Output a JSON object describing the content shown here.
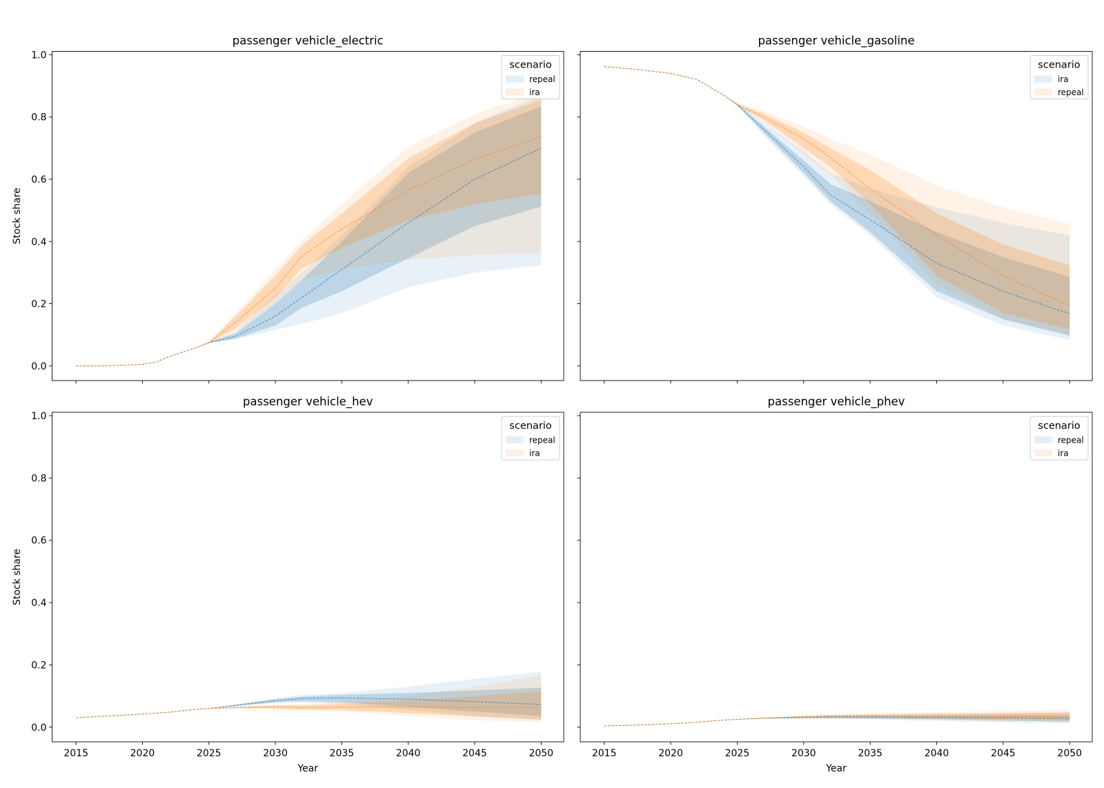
{
  "chart_data": [
    {
      "type": "area",
      "title": "passenger vehicle_electric",
      "xlabel": "",
      "ylabel": "Stock share",
      "xlim": [
        2013.2,
        2051.7
      ],
      "ylim": [
        -0.047,
        1.011
      ],
      "xticks": [
        2015,
        2020,
        2025,
        2030,
        2035,
        2040,
        2045,
        2050
      ],
      "yticks": [
        "0.0",
        "0.2",
        "0.4",
        "0.6",
        "0.8",
        "1.0"
      ],
      "show_xticklabels": false,
      "show_yticklabels": true,
      "legend": {
        "title": "scenario",
        "placement": "top-right"
      },
      "x": [
        2015,
        2017,
        2020,
        2021,
        2022,
        2024,
        2025,
        2027,
        2030,
        2032,
        2035,
        2040,
        2045,
        2050
      ],
      "series": [
        {
          "name": "repeal",
          "color": "#1f77b4",
          "mean": [
            0,
            0,
            0.005,
            0.012,
            0.03,
            0.058,
            0.075,
            0.095,
            0.16,
            0.22,
            0.31,
            0.46,
            0.6,
            0.7
          ],
          "inner_lo": [
            0,
            0,
            0.005,
            0.012,
            0.03,
            0.058,
            0.074,
            0.088,
            0.13,
            0.187,
            0.24,
            0.346,
            0.45,
            0.512
          ],
          "inner_hi": [
            0,
            0,
            0.005,
            0.012,
            0.03,
            0.058,
            0.076,
            0.105,
            0.2,
            0.276,
            0.4,
            0.62,
            0.75,
            0.834
          ],
          "outer_lo": [
            0,
            0,
            0.005,
            0.012,
            0.03,
            0.058,
            0.073,
            0.085,
            0.115,
            0.135,
            0.17,
            0.253,
            0.3,
            0.324
          ],
          "outer_hi": [
            0,
            0,
            0.005,
            0.012,
            0.03,
            0.058,
            0.077,
            0.11,
            0.23,
            0.3,
            0.42,
            0.64,
            0.78,
            0.87
          ]
        },
        {
          "name": "ira",
          "color": "#ff7f0e",
          "mean": [
            0,
            0,
            0.005,
            0.012,
            0.03,
            0.058,
            0.075,
            0.14,
            0.25,
            0.353,
            0.44,
            0.564,
            0.665,
            0.738
          ],
          "inner_lo": [
            0,
            0,
            0.005,
            0.012,
            0.03,
            0.058,
            0.073,
            0.12,
            0.22,
            0.313,
            0.38,
            0.468,
            0.52,
            0.553
          ],
          "inner_hi": [
            0,
            0,
            0.005,
            0.012,
            0.03,
            0.058,
            0.077,
            0.16,
            0.29,
            0.387,
            0.49,
            0.667,
            0.78,
            0.856
          ],
          "outer_lo": [
            0,
            0,
            0.005,
            0.012,
            0.03,
            0.058,
            0.072,
            0.11,
            0.2,
            0.276,
            0.31,
            0.342,
            0.356,
            0.364
          ],
          "outer_hi": [
            0,
            0,
            0.005,
            0.012,
            0.03,
            0.058,
            0.078,
            0.17,
            0.31,
            0.405,
            0.52,
            0.705,
            0.81,
            0.88
          ]
        }
      ]
    },
    {
      "type": "area",
      "title": "passenger vehicle_gasoline",
      "xlabel": "",
      "ylabel": "",
      "xlim": [
        2013.2,
        2051.7
      ],
      "ylim": [
        -0.047,
        1.011
      ],
      "xticks": [
        2015,
        2020,
        2025,
        2030,
        2035,
        2040,
        2045,
        2050
      ],
      "yticks": [
        "0.0",
        "0.2",
        "0.4",
        "0.6",
        "0.8",
        "1.0"
      ],
      "show_xticklabels": false,
      "show_yticklabels": false,
      "legend": {
        "title": "scenario",
        "placement": "top-right"
      },
      "x": [
        2015,
        2017,
        2020,
        2021,
        2022,
        2024,
        2025,
        2027,
        2030,
        2032,
        2035,
        2040,
        2045,
        2050
      ],
      "series": [
        {
          "name": "ira",
          "color": "#1f77b4",
          "mean": [
            0.962,
            0.955,
            0.94,
            0.93,
            0.92,
            0.87,
            0.84,
            0.76,
            0.64,
            0.55,
            0.47,
            0.33,
            0.24,
            0.168
          ],
          "inner_lo": [
            0.962,
            0.955,
            0.94,
            0.93,
            0.92,
            0.87,
            0.838,
            0.75,
            0.62,
            0.53,
            0.43,
            0.24,
            0.15,
            0.097
          ],
          "inner_hi": [
            0.962,
            0.955,
            0.94,
            0.93,
            0.92,
            0.87,
            0.842,
            0.77,
            0.66,
            0.585,
            0.53,
            0.43,
            0.35,
            0.286
          ],
          "outer_lo": [
            0.962,
            0.955,
            0.94,
            0.93,
            0.92,
            0.87,
            0.836,
            0.74,
            0.61,
            0.52,
            0.42,
            0.22,
            0.13,
            0.083
          ],
          "outer_hi": [
            0.962,
            0.955,
            0.94,
            0.93,
            0.92,
            0.87,
            0.844,
            0.78,
            0.69,
            0.62,
            0.57,
            0.51,
            0.46,
            0.419
          ]
        },
        {
          "name": "repeal",
          "color": "#ff7f0e",
          "mean": [
            0.962,
            0.955,
            0.94,
            0.93,
            0.92,
            0.87,
            0.84,
            0.8,
            0.73,
            0.67,
            0.57,
            0.42,
            0.29,
            0.194
          ],
          "inner_lo": [
            0.962,
            0.955,
            0.94,
            0.93,
            0.92,
            0.87,
            0.838,
            0.79,
            0.7,
            0.64,
            0.52,
            0.29,
            0.17,
            0.117
          ],
          "inner_hi": [
            0.962,
            0.955,
            0.94,
            0.93,
            0.92,
            0.87,
            0.842,
            0.81,
            0.75,
            0.7,
            0.63,
            0.49,
            0.39,
            0.323
          ],
          "outer_lo": [
            0.962,
            0.955,
            0.94,
            0.93,
            0.92,
            0.87,
            0.836,
            0.78,
            0.68,
            0.615,
            0.49,
            0.26,
            0.15,
            0.1
          ],
          "outer_hi": [
            0.962,
            0.955,
            0.94,
            0.93,
            0.92,
            0.87,
            0.844,
            0.82,
            0.77,
            0.73,
            0.68,
            0.58,
            0.51,
            0.456
          ]
        }
      ]
    },
    {
      "type": "area",
      "title": "passenger vehicle_hev",
      "xlabel": "Year",
      "ylabel": "Stock share",
      "xlim": [
        2013.2,
        2051.7
      ],
      "ylim": [
        -0.047,
        1.011
      ],
      "xticks": [
        2015,
        2020,
        2025,
        2030,
        2035,
        2040,
        2045,
        2050
      ],
      "yticks": [
        "0.0",
        "0.2",
        "0.4",
        "0.6",
        "0.8",
        "1.0"
      ],
      "show_xticklabels": true,
      "show_yticklabels": true,
      "legend": {
        "title": "scenario",
        "placement": "top-right"
      },
      "x": [
        2015,
        2017,
        2020,
        2021,
        2022,
        2024,
        2025,
        2027,
        2030,
        2032,
        2035,
        2040,
        2045,
        2050
      ],
      "series": [
        {
          "name": "repeal",
          "color": "#1f77b4",
          "mean": [
            0.03,
            0.035,
            0.042,
            0.045,
            0.048,
            0.057,
            0.06,
            0.07,
            0.085,
            0.092,
            0.094,
            0.09,
            0.082,
            0.073
          ],
          "inner_lo": [
            0.03,
            0.035,
            0.042,
            0.045,
            0.048,
            0.057,
            0.06,
            0.068,
            0.08,
            0.083,
            0.08,
            0.065,
            0.05,
            0.035
          ],
          "inner_hi": [
            0.03,
            0.035,
            0.042,
            0.045,
            0.048,
            0.057,
            0.06,
            0.072,
            0.09,
            0.098,
            0.104,
            0.11,
            0.118,
            0.127
          ],
          "outer_lo": [
            0.03,
            0.035,
            0.042,
            0.045,
            0.048,
            0.057,
            0.06,
            0.067,
            0.078,
            0.08,
            0.075,
            0.055,
            0.035,
            0.022
          ],
          "outer_hi": [
            0.03,
            0.035,
            0.042,
            0.045,
            0.048,
            0.057,
            0.06,
            0.073,
            0.093,
            0.103,
            0.11,
            0.13,
            0.155,
            0.178
          ]
        },
        {
          "name": "ira",
          "color": "#ff7f0e",
          "mean": [
            0.03,
            0.035,
            0.042,
            0.045,
            0.048,
            0.057,
            0.06,
            0.063,
            0.065,
            0.063,
            0.065,
            0.065,
            0.064,
            0.064
          ],
          "inner_lo": [
            0.03,
            0.035,
            0.042,
            0.045,
            0.048,
            0.057,
            0.06,
            0.061,
            0.06,
            0.057,
            0.055,
            0.045,
            0.035,
            0.025
          ],
          "inner_hi": [
            0.03,
            0.035,
            0.042,
            0.045,
            0.048,
            0.057,
            0.06,
            0.065,
            0.07,
            0.07,
            0.075,
            0.085,
            0.1,
            0.116
          ],
          "outer_lo": [
            0.03,
            0.035,
            0.042,
            0.045,
            0.048,
            0.057,
            0.06,
            0.06,
            0.058,
            0.053,
            0.05,
            0.035,
            0.022,
            0.016
          ],
          "outer_hi": [
            0.03,
            0.035,
            0.042,
            0.045,
            0.048,
            0.057,
            0.06,
            0.066,
            0.072,
            0.075,
            0.082,
            0.1,
            0.13,
            0.167
          ]
        }
      ]
    },
    {
      "type": "area",
      "title": "passenger vehicle_phev",
      "xlabel": "Year",
      "ylabel": "",
      "xlim": [
        2013.2,
        2051.7
      ],
      "ylim": [
        -0.047,
        1.011
      ],
      "xticks": [
        2015,
        2020,
        2025,
        2030,
        2035,
        2040,
        2045,
        2050
      ],
      "yticks": [
        "0.0",
        "0.2",
        "0.4",
        "0.6",
        "0.8",
        "1.0"
      ],
      "show_xticklabels": true,
      "show_yticklabels": false,
      "legend": {
        "title": "scenario",
        "placement": "top-right"
      },
      "x": [
        2015,
        2017,
        2020,
        2021,
        2022,
        2024,
        2025,
        2027,
        2030,
        2032,
        2035,
        2040,
        2045,
        2050
      ],
      "series": [
        {
          "name": "repeal",
          "color": "#1f77b4",
          "mean": [
            0.004,
            0.006,
            0.011,
            0.013,
            0.016,
            0.023,
            0.025,
            0.029,
            0.031,
            0.032,
            0.032,
            0.031,
            0.03,
            0.028
          ],
          "inner_lo": [
            0.004,
            0.006,
            0.011,
            0.013,
            0.016,
            0.023,
            0.025,
            0.028,
            0.029,
            0.029,
            0.028,
            0.025,
            0.021,
            0.018
          ],
          "inner_hi": [
            0.004,
            0.006,
            0.011,
            0.013,
            0.016,
            0.023,
            0.025,
            0.03,
            0.033,
            0.035,
            0.036,
            0.037,
            0.039,
            0.04
          ],
          "outer_lo": [
            0.004,
            0.006,
            0.011,
            0.013,
            0.016,
            0.023,
            0.025,
            0.027,
            0.028,
            0.027,
            0.025,
            0.02,
            0.015,
            0.012
          ],
          "outer_hi": [
            0.004,
            0.006,
            0.011,
            0.013,
            0.016,
            0.023,
            0.025,
            0.031,
            0.034,
            0.037,
            0.039,
            0.042,
            0.045,
            0.048
          ]
        },
        {
          "name": "ira",
          "color": "#ff7f0e",
          "mean": [
            0.004,
            0.006,
            0.011,
            0.013,
            0.016,
            0.023,
            0.025,
            0.029,
            0.034,
            0.036,
            0.037,
            0.036,
            0.035,
            0.033
          ],
          "inner_lo": [
            0.004,
            0.006,
            0.011,
            0.013,
            0.016,
            0.023,
            0.025,
            0.028,
            0.032,
            0.033,
            0.032,
            0.029,
            0.026,
            0.023
          ],
          "inner_hi": [
            0.004,
            0.006,
            0.011,
            0.013,
            0.016,
            0.023,
            0.025,
            0.03,
            0.036,
            0.039,
            0.041,
            0.043,
            0.045,
            0.047
          ],
          "outer_lo": [
            0.004,
            0.006,
            0.011,
            0.013,
            0.016,
            0.023,
            0.025,
            0.027,
            0.031,
            0.031,
            0.029,
            0.025,
            0.02,
            0.016
          ],
          "outer_hi": [
            0.004,
            0.006,
            0.011,
            0.013,
            0.016,
            0.023,
            0.025,
            0.031,
            0.037,
            0.041,
            0.044,
            0.048,
            0.052,
            0.056
          ]
        }
      ]
    }
  ]
}
